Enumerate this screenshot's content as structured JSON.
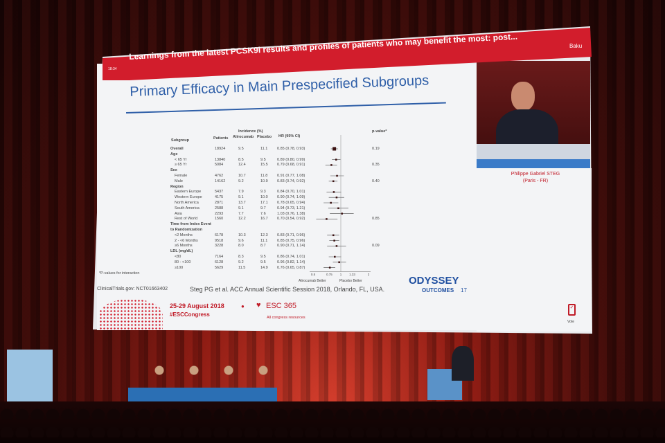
{
  "banner": {
    "title": "Learnings from the latest PCSK9i results and profiles of patients who may benefit the most: post...",
    "location": "Baku",
    "time": "18:34"
  },
  "slide": {
    "title": "Primary Efficacy in Main Prespecified Subgroups",
    "headers": {
      "subgroup": "Subgroup",
      "patients": "Patients",
      "incidence": "Incidence (%)",
      "alirocumab": "Alirocumab",
      "placebo": "Placebo",
      "hr": "HR (95% CI)",
      "pvalue": "p-value*"
    },
    "rows": [
      {
        "label": "Overall",
        "head": true,
        "patients": "18924",
        "alir": "9.5",
        "plac": "11.1",
        "hr": "0.85 (0.78, 0.93)",
        "v": [
          0.85,
          0.78,
          0.93
        ],
        "p": "0.19"
      },
      {
        "label": "Age",
        "head": true
      },
      {
        "label": "< 65 Yr",
        "patients": "13840",
        "alir": "8.5",
        "plac": "9.5",
        "hr": "0.89 (0.80, 0.99)",
        "v": [
          0.89,
          0.8,
          0.99
        ]
      },
      {
        "label": "≥ 65 Yr",
        "patients": "5084",
        "alir": "12.4",
        "plac": "15.5",
        "hr": "0.79 (0.68, 0.91)",
        "v": [
          0.79,
          0.68,
          0.91
        ],
        "p": "0.35"
      },
      {
        "label": "Sex",
        "head": true
      },
      {
        "label": "Female",
        "patients": "4762",
        "alir": "10.7",
        "plac": "11.8",
        "hr": "0.91 (0.77, 1.08)",
        "v": [
          0.91,
          0.77,
          1.08
        ]
      },
      {
        "label": "Male",
        "patients": "14162",
        "alir": "9.2",
        "plac": "10.9",
        "hr": "0.83 (0.74, 0.92)",
        "v": [
          0.83,
          0.74,
          0.92
        ],
        "p": "0.40"
      },
      {
        "label": "Region",
        "head": true
      },
      {
        "label": "Eastern Europe",
        "patients": "5437",
        "alir": "7.9",
        "plac": "9.3",
        "hr": "0.84 (0.70, 1.01)",
        "v": [
          0.84,
          0.7,
          1.01
        ]
      },
      {
        "label": "Western Europe",
        "patients": "4175",
        "alir": "9.1",
        "plac": "10.0",
        "hr": "0.90 (0.74, 1.09)",
        "v": [
          0.9,
          0.74,
          1.09
        ]
      },
      {
        "label": "North America",
        "patients": "2871",
        "alir": "13.7",
        "plac": "17.1",
        "hr": "0.78 (0.65, 0.94)",
        "v": [
          0.78,
          0.65,
          0.94
        ]
      },
      {
        "label": "South America",
        "patients": "2588",
        "alir": "9.1",
        "plac": "9.7",
        "hr": "0.94 (0.73, 1.21)",
        "v": [
          0.94,
          0.73,
          1.21
        ]
      },
      {
        "label": "Asia",
        "patients": "2293",
        "alir": "7.7",
        "plac": "7.6",
        "hr": "1.03 (0.76, 1.38)",
        "v": [
          1.03,
          0.76,
          1.38
        ]
      },
      {
        "label": "Rest of World",
        "patients": "1560",
        "alir": "12.2",
        "plac": "16.7",
        "hr": "0.70 (0.54, 0.92)",
        "v": [
          0.7,
          0.54,
          0.92
        ],
        "p": "0.85"
      },
      {
        "label": "Time from Index Event",
        "head": true
      },
      {
        "label": "to Randomization",
        "head": true
      },
      {
        "label": "<2 Months",
        "patients": "6178",
        "alir": "10.3",
        "plac": "12.3",
        "hr": "0.83 (0.71, 0.96)",
        "v": [
          0.83,
          0.71,
          0.96
        ]
      },
      {
        "label": "2 - <6 Months",
        "patients": "9518",
        "alir": "9.6",
        "plac": "11.1",
        "hr": "0.85 (0.75, 0.96)",
        "v": [
          0.85,
          0.75,
          0.96
        ]
      },
      {
        "label": "≥6 Months",
        "patients": "3228",
        "alir": "8.0",
        "plac": "8.7",
        "hr": "0.90 (0.71, 1.14)",
        "v": [
          0.9,
          0.71,
          1.14
        ],
        "p": "0.09"
      },
      {
        "label": "LDL (mg/dL)",
        "head": true
      },
      {
        "label": "<80",
        "patients": "7164",
        "alir": "8.3",
        "plac": "9.5",
        "hr": "0.86 (0.74, 1.01)",
        "v": [
          0.86,
          0.74,
          1.01
        ]
      },
      {
        "label": "80 - <100",
        "patients": "6128",
        "alir": "9.2",
        "plac": "9.5",
        "hr": "0.96 (0.82, 1.14)",
        "v": [
          0.96,
          0.82,
          1.14
        ]
      },
      {
        "label": "≥100",
        "patients": "5629",
        "alir": "11.5",
        "plac": "14.9",
        "hr": "0.76 (0.65, 0.87)",
        "v": [
          0.76,
          0.65,
          0.87
        ]
      }
    ],
    "axis_ticks": [
      "0.5",
      "0.75",
      "1",
      "1.33",
      "2"
    ],
    "axis_left": "Alirocumab Better",
    "axis_right": "Placebo Better",
    "footnote": "*P-values for interaction",
    "trial_id": "ClinicalTrials.gov: NCT01663402",
    "citation": "Steg PG et al. ACC Annual Scientific Session 2018, Orlando, FL, USA.",
    "logo_top": "ODYSSEY",
    "logo_bottom": "OUTCOMES",
    "page": "17",
    "dates": "25-29 August 2018",
    "hashtag": "#ESCCongress",
    "esc": "ESC 365",
    "esc_sub": "All congress resources",
    "vote": "Vote"
  },
  "speaker": {
    "name": "Philippe Gabriel STEG",
    "location": "(Paris - FR)"
  },
  "colors": {
    "banner": "#d21d2c",
    "title": "#2f5fa8"
  }
}
